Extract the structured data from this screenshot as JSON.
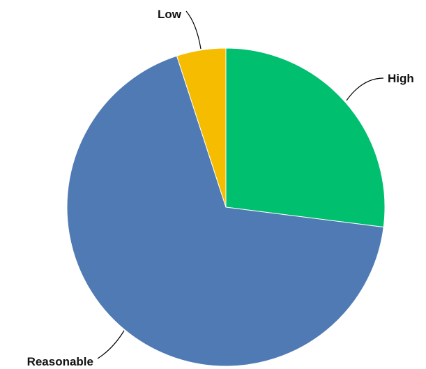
{
  "chart_data": {
    "type": "pie",
    "title": "",
    "slices": [
      {
        "label": "High",
        "value": 27,
        "color": "#00BF6F"
      },
      {
        "label": "Reasonable",
        "value": 68,
        "color": "#4F7AB3"
      },
      {
        "label": "Low",
        "value": 5,
        "color": "#F5BC00"
      }
    ],
    "start": "top, clockwise",
    "legend": "none (labels on leader lines)"
  }
}
